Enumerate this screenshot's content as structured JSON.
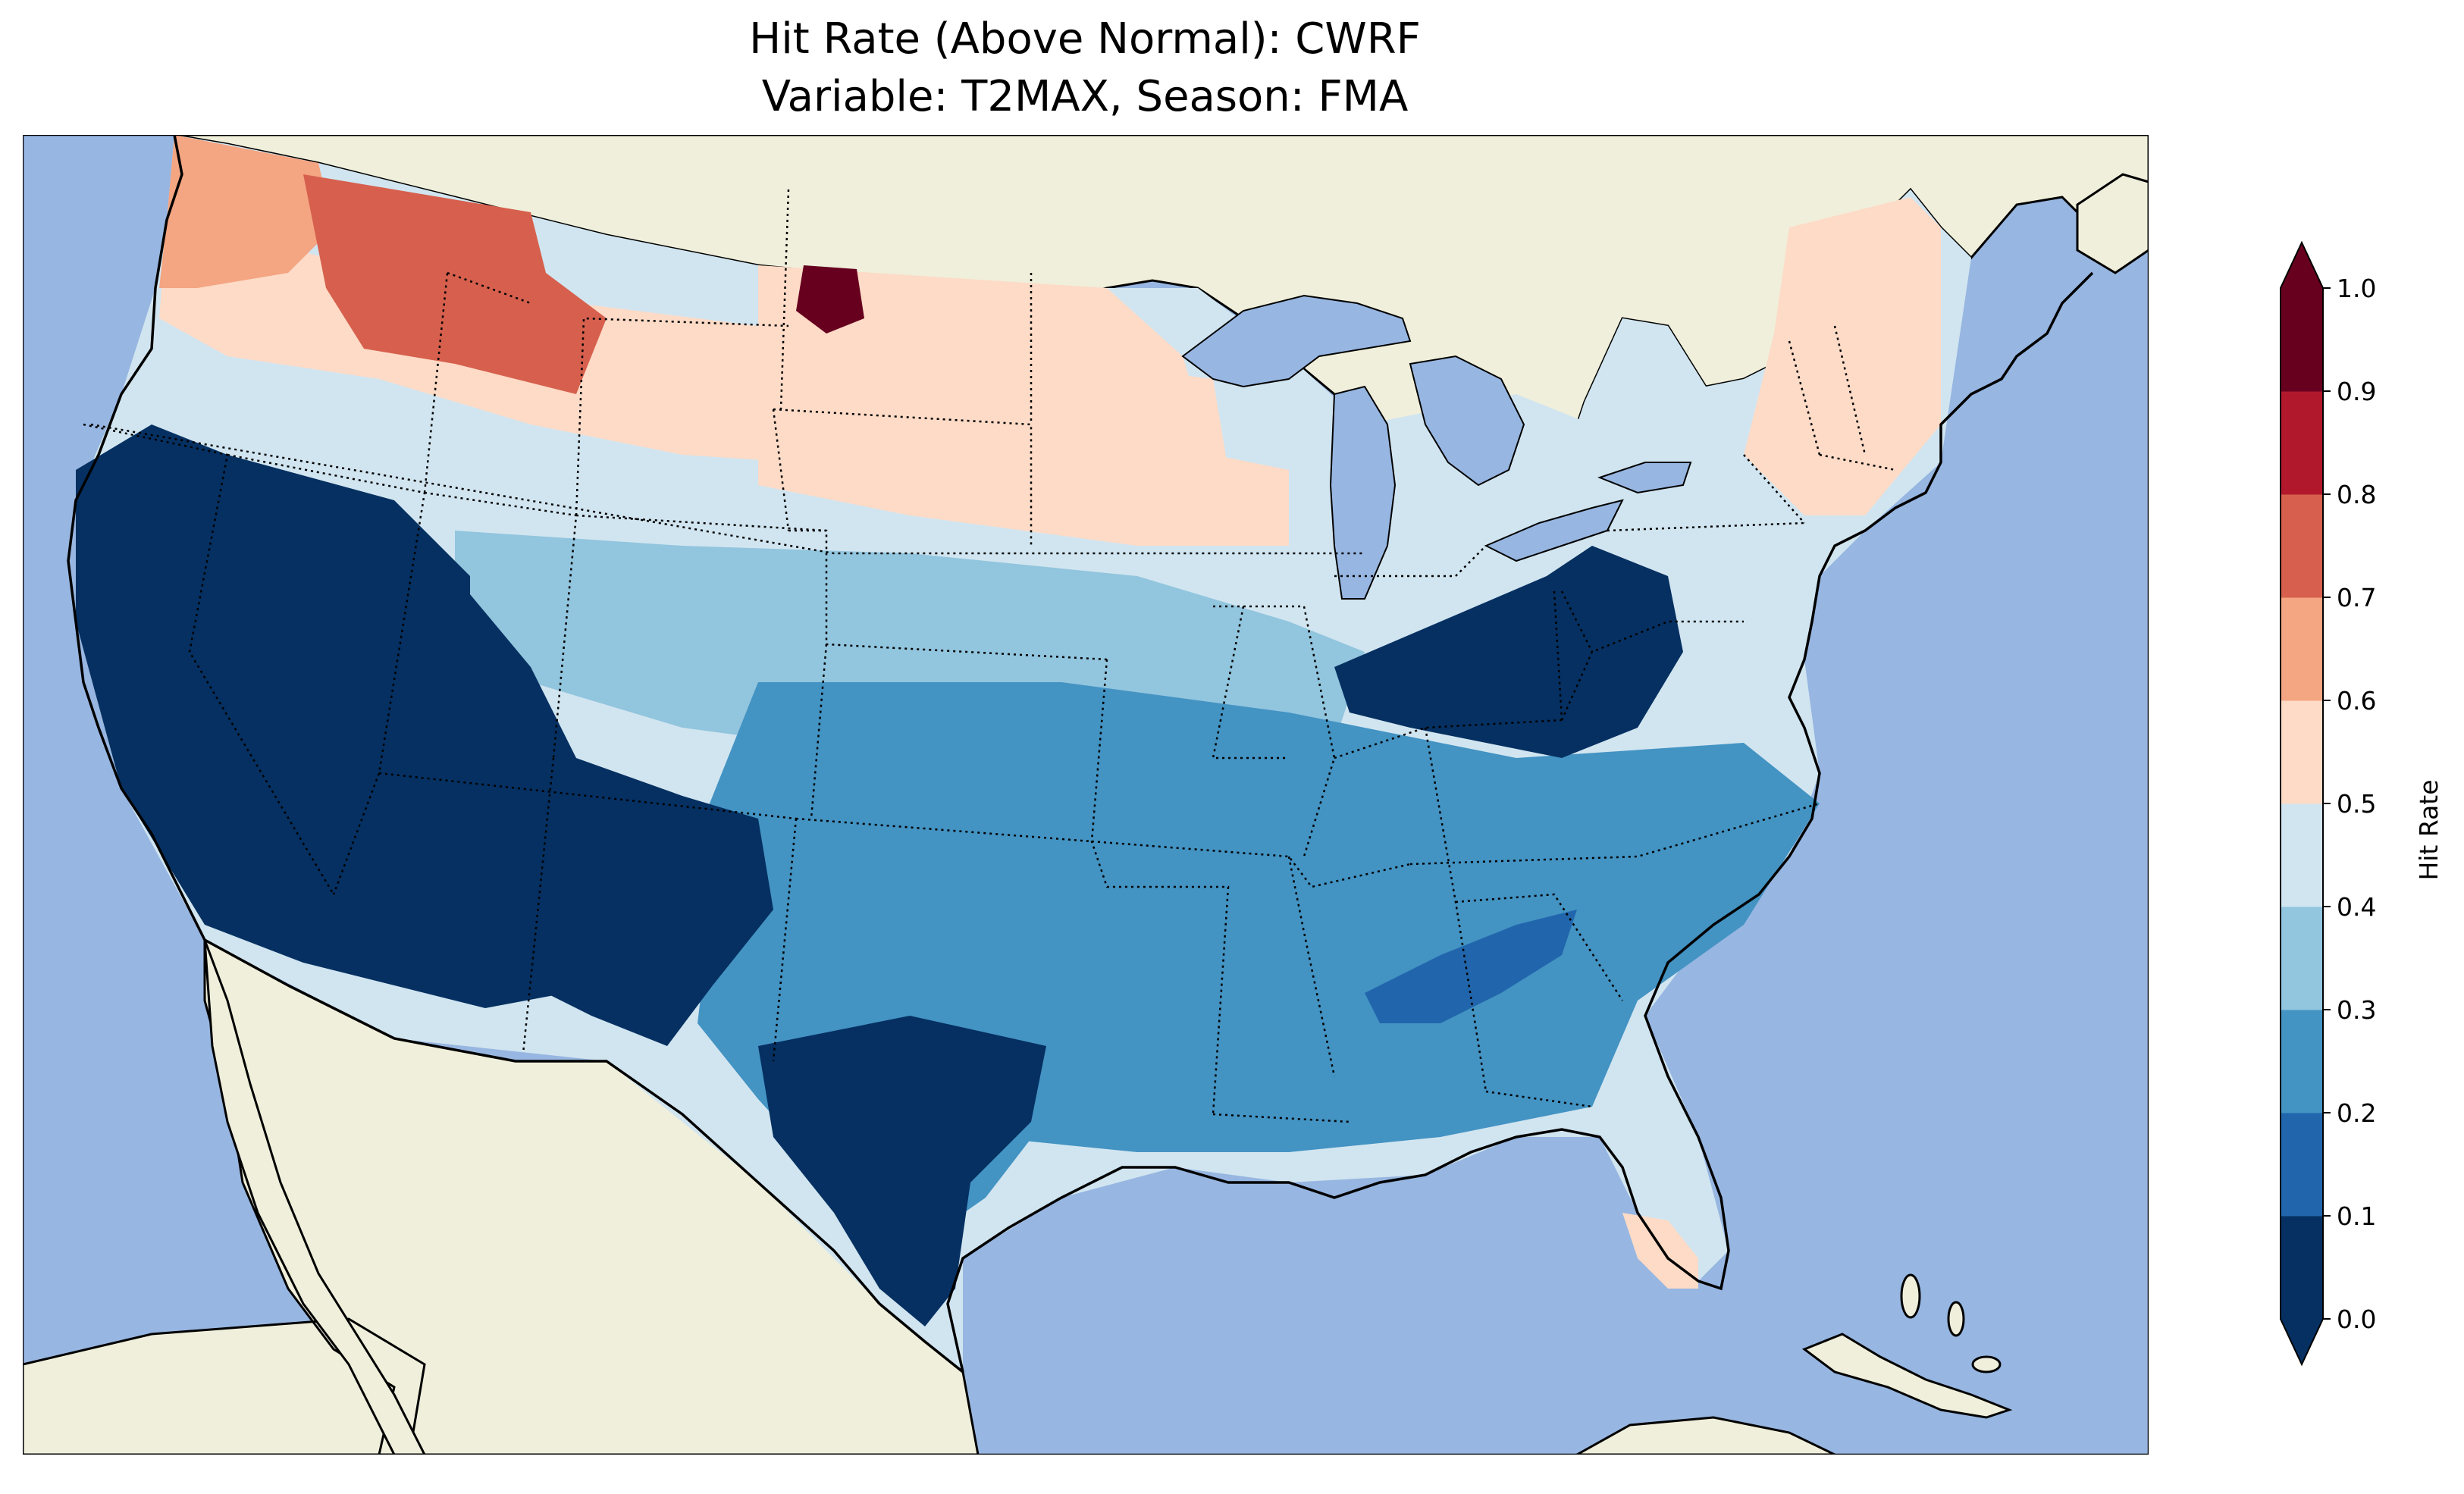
{
  "figure": {
    "title_line1": "Hit Rate (Above Normal): CWRF",
    "title_line2": "Variable: T2MAX, Season: FMA"
  },
  "map": {
    "region": "Contiguous United States",
    "projection": "Lambert Conformal",
    "ocean_color": "#97b6e1",
    "land_color": "#efefdb",
    "coastline_color": "#000000",
    "state_border_style": "dotted"
  },
  "colorbar": {
    "label": "Hit Rate",
    "extend": "both",
    "ticks": [
      "0.0",
      "0.1",
      "0.2",
      "0.3",
      "0.4",
      "0.5",
      "0.6",
      "0.7",
      "0.8",
      "0.9",
      "1.0"
    ],
    "colors": [
      "#053061",
      "#2166ac",
      "#4393c3",
      "#92c5de",
      "#d1e5f0",
      "#fddbc7",
      "#f4a582",
      "#d6604d",
      "#b2182b",
      "#67001f"
    ],
    "under_color": "#053061",
    "over_color": "#67001f"
  },
  "chart_data": {
    "type": "heatmap",
    "title": "Hit Rate (Above Normal): CWRF\nVariable: T2MAX, Season: FMA",
    "colorbar_label": "Hit Rate",
    "value_range": [
      0.0,
      1.0
    ],
    "regions": [
      {
        "region": "Pacific Northwest coast",
        "value": 0.65
      },
      {
        "region": "Northern Idaho / Western Montana",
        "value": 0.75
      },
      {
        "region": "Central Montana",
        "value": 0.55
      },
      {
        "region": "NE Montana / NW North Dakota",
        "value": 0.95
      },
      {
        "region": "North Dakota / Minnesota",
        "value": 0.55
      },
      {
        "region": "California / Nevada / Arizona",
        "value": 0.05
      },
      {
        "region": "Utah / Western Colorado / New Mexico",
        "value": 0.05
      },
      {
        "region": "Wyoming / Nebraska",
        "value": 0.35
      },
      {
        "region": "Kansas / Oklahoma / Missouri",
        "value": 0.25
      },
      {
        "region": "Texas interior",
        "value": 0.25
      },
      {
        "region": "South Texas",
        "value": 0.05
      },
      {
        "region": "Ohio Valley / West Virginia",
        "value": 0.05
      },
      {
        "region": "Alabama / Georgia",
        "value": 0.1
      },
      {
        "region": "Great Lakes",
        "value": 0.45
      },
      {
        "region": "New England",
        "value": 0.5
      },
      {
        "region": "Southern Florida",
        "value": 0.55
      }
    ]
  }
}
